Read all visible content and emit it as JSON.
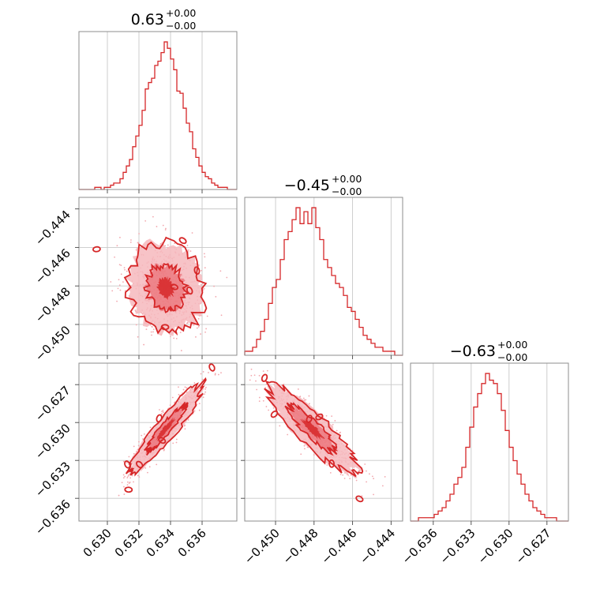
{
  "chart_data": {
    "type": "corner",
    "color": "#d62728",
    "parameters": [
      {
        "title_value": "0.63",
        "title_plus": "+0.00",
        "title_minus": "−0.00",
        "mean": 0.6337,
        "sd": 0.0012,
        "range": [
          0.6282,
          0.6382
        ],
        "ticks": [
          0.63,
          0.632,
          0.634,
          0.636
        ],
        "tick_labels": [
          "0.630",
          "0.632",
          "0.634",
          "0.636"
        ]
      },
      {
        "title_value": "−0.45",
        "title_plus": "+0.00",
        "title_minus": "−0.00",
        "mean": -0.4481,
        "sd": 0.0012,
        "range": [
          -0.4516,
          -0.4434
        ],
        "ticks": [
          -0.45,
          -0.448,
          -0.446,
          -0.444
        ],
        "tick_labels": [
          "−0.450",
          "−0.448",
          "−0.446",
          "−0.444"
        ]
      },
      {
        "title_value": "−0.63",
        "title_plus": "+0.00",
        "title_minus": "−0.00",
        "mean": -0.6305,
        "sd": 0.0018,
        "range": [
          -0.6378,
          -0.6253
        ],
        "ticks": [
          -0.636,
          -0.633,
          -0.63,
          -0.627
        ],
        "tick_labels": [
          "−0.636",
          "−0.633",
          "−0.630",
          "−0.627"
        ]
      }
    ],
    "marginal_histograms": [
      {
        "bins": 50,
        "x_from": 0.6282,
        "x_to": 0.6382,
        "counts": [
          0,
          0,
          0,
          0,
          0,
          1,
          1,
          0,
          1,
          1,
          2,
          3,
          3,
          5,
          8,
          11,
          14,
          20,
          25,
          30,
          37,
          47,
          50,
          52,
          58,
          60,
          64,
          69,
          66,
          61,
          56,
          46,
          45,
          38,
          31,
          27,
          19,
          15,
          11,
          8,
          6,
          5,
          3,
          2,
          1,
          1,
          1,
          0,
          0,
          0
        ]
      },
      {
        "bins": 40,
        "x_from": -0.4516,
        "x_to": -0.4434,
        "counts": [
          1,
          1,
          2,
          4,
          6,
          9,
          13,
          17,
          19,
          24,
          29,
          31,
          34,
          37,
          33,
          36,
          33,
          37,
          32,
          29,
          24,
          22,
          20,
          18,
          17,
          15,
          12,
          11,
          9,
          7,
          5,
          4,
          3,
          2,
          2,
          1,
          1,
          1,
          0,
          0
        ]
      },
      {
        "bins": 40,
        "x_from": -0.6378,
        "x_to": -0.6253,
        "counts": [
          0,
          0,
          1,
          1,
          1,
          1,
          2,
          3,
          4,
          6,
          8,
          11,
          13,
          16,
          22,
          28,
          34,
          38,
          41,
          44,
          42,
          41,
          38,
          33,
          27,
          22,
          18,
          14,
          11,
          8,
          6,
          4,
          3,
          2,
          1,
          1,
          1,
          0,
          0,
          0
        ]
      }
    ],
    "pairwise_correlations": [
      {
        "x_param": 0,
        "y_param": 1,
        "rho": -0.1
      },
      {
        "x_param": 0,
        "y_param": 2,
        "rho": 0.93
      },
      {
        "x_param": 1,
        "y_param": 2,
        "rho": -0.88
      }
    ],
    "contour_levels": [
      "39%",
      "86%"
    ],
    "grid": true
  }
}
